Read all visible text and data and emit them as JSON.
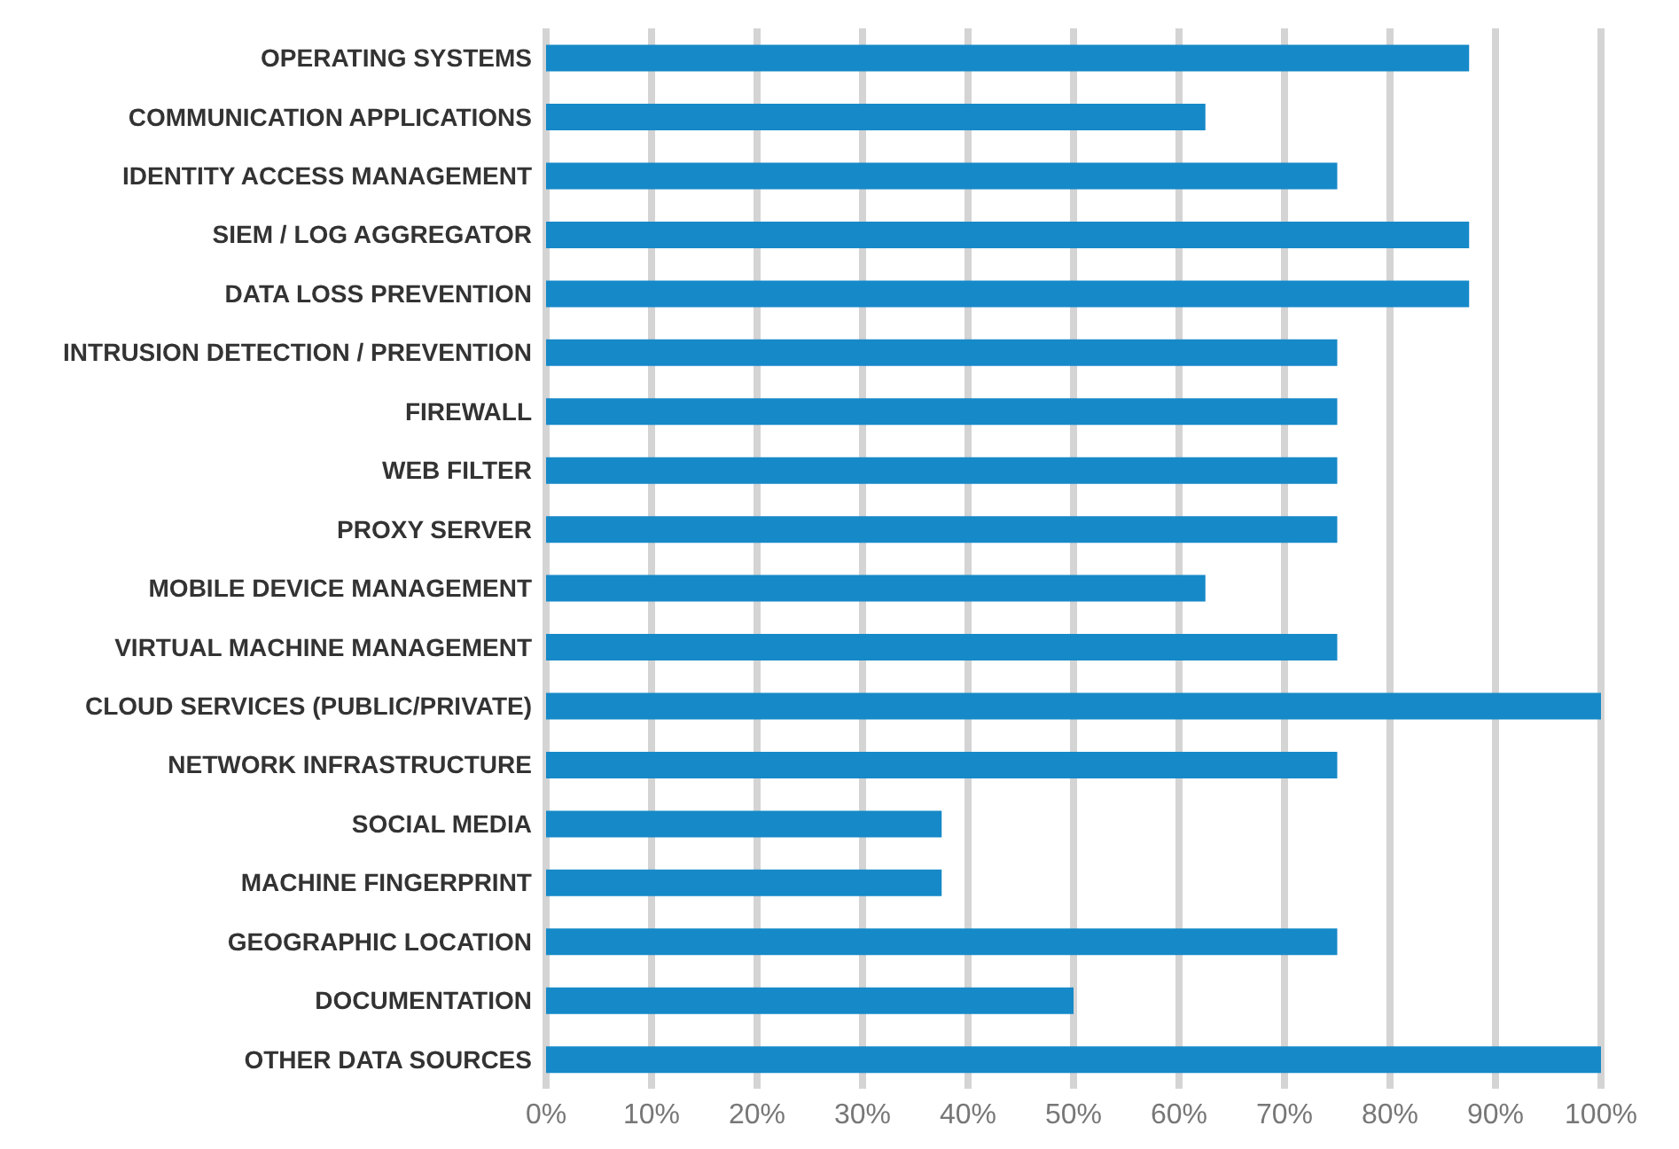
{
  "chart_data": {
    "type": "bar",
    "orientation": "horizontal",
    "categories": [
      "OPERATING SYSTEMS",
      "COMMUNICATION APPLICATIONS",
      "IDENTITY ACCESS MANAGEMENT",
      "SIEM / LOG AGGREGATOR",
      "DATA LOSS PREVENTION",
      "INTRUSION DETECTION / PREVENTION",
      "FIREWALL",
      "WEB FILTER",
      "PROXY SERVER",
      "MOBILE DEVICE MANAGEMENT",
      "VIRTUAL MACHINE MANAGEMENT",
      "CLOUD SERVICES (PUBLIC/PRIVATE)",
      "NETWORK INFRASTRUCTURE",
      "SOCIAL MEDIA",
      "MACHINE FINGERPRINT",
      "GEOGRAPHIC LOCATION",
      "DOCUMENTATION",
      "OTHER DATA SOURCES"
    ],
    "values": [
      87.5,
      62.5,
      75,
      87.5,
      87.5,
      75,
      75,
      75,
      75,
      62.5,
      75,
      100,
      75,
      37.5,
      37.5,
      75,
      50,
      100
    ],
    "color": "#1689c8",
    "xlim": [
      0,
      100
    ],
    "xticks": [
      {
        "value": 0,
        "label": "0%"
      },
      {
        "value": 10,
        "label": "10%"
      },
      {
        "value": 20,
        "label": "20%"
      },
      {
        "value": 30,
        "label": "30%"
      },
      {
        "value": 40,
        "label": "40%"
      },
      {
        "value": 50,
        "label": "50%"
      },
      {
        "value": 60,
        "label": "60%"
      },
      {
        "value": 70,
        "label": "70%"
      },
      {
        "value": 80,
        "label": "80%"
      },
      {
        "value": 90,
        "label": "90%"
      },
      {
        "value": 100,
        "label": "100%"
      }
    ],
    "grid": "x"
  }
}
